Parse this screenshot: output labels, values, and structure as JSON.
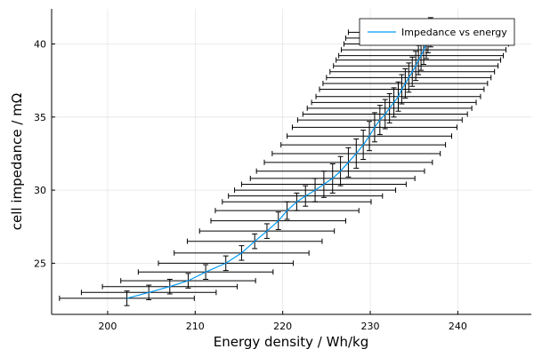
{
  "chart_data": {
    "type": "line",
    "xlabel": "Energy density / Wh/kg",
    "ylabel": "cell impedance / mΩ",
    "xlim": [
      193.6,
      248.4
    ],
    "ylim": [
      21.5,
      42.4
    ],
    "xticks": [
      200,
      210,
      220,
      230,
      240
    ],
    "yticks": [
      25,
      30,
      35,
      40
    ],
    "grid": true,
    "legend_position": "top-right",
    "series": [
      {
        "name": "Impedance vs energy",
        "color": "#009af9",
        "error_bar_color": "#000000",
        "x": [
          202.2,
          204.7,
          207.1,
          209.2,
          211.2,
          213.5,
          215.3,
          216.8,
          218.2,
          219.5,
          220.5,
          221.6,
          222.6,
          223.7,
          224.7,
          225.7,
          226.6,
          227.5,
          228.4,
          229.2,
          229.9,
          230.5,
          231.1,
          231.7,
          232.2,
          232.7,
          233.2,
          233.6,
          234.0,
          234.4,
          234.8,
          235.2,
          235.5,
          235.8,
          236.1,
          236.4,
          236.6,
          236.9
        ],
        "y": [
          22.6,
          23.0,
          23.4,
          23.8,
          24.4,
          25.0,
          25.7,
          26.5,
          27.2,
          27.9,
          28.6,
          29.2,
          29.6,
          30.0,
          30.4,
          30.8,
          31.3,
          31.9,
          32.5,
          33.1,
          33.7,
          34.3,
          34.8,
          35.2,
          35.6,
          36.0,
          36.4,
          36.9,
          37.3,
          37.7,
          38.1,
          38.5,
          38.9,
          39.2,
          39.6,
          40.0,
          40.4,
          40.8
        ],
        "x_error": [
          7.7,
          7.7,
          7.7,
          7.7,
          7.7,
          7.7,
          7.7,
          7.7,
          7.7,
          7.7,
          8.2,
          8.5,
          8.8,
          9.2,
          9.4,
          9.4,
          9.6,
          9.6,
          9.6,
          9.4,
          9.4,
          9.4,
          9.4,
          9.4,
          9.4,
          9.4,
          9.4,
          9.4,
          9.4,
          9.4,
          9.4,
          9.4,
          9.4,
          9.4,
          9.4,
          9.4,
          9.4,
          9.4
        ],
        "y_error": [
          0.5,
          0.5,
          0.5,
          0.5,
          0.5,
          0.5,
          0.5,
          0.5,
          0.5,
          0.6,
          0.6,
          0.6,
          0.7,
          0.8,
          0.9,
          1.0,
          1.0,
          1.0,
          1.0,
          1.0,
          1.0,
          1.0,
          1.0,
          1.0,
          1.0,
          1.0,
          1.0,
          1.0,
          1.0,
          1.0,
          1.0,
          1.0,
          1.0,
          1.0,
          1.0,
          1.0,
          1.0,
          1.0
        ]
      }
    ]
  }
}
